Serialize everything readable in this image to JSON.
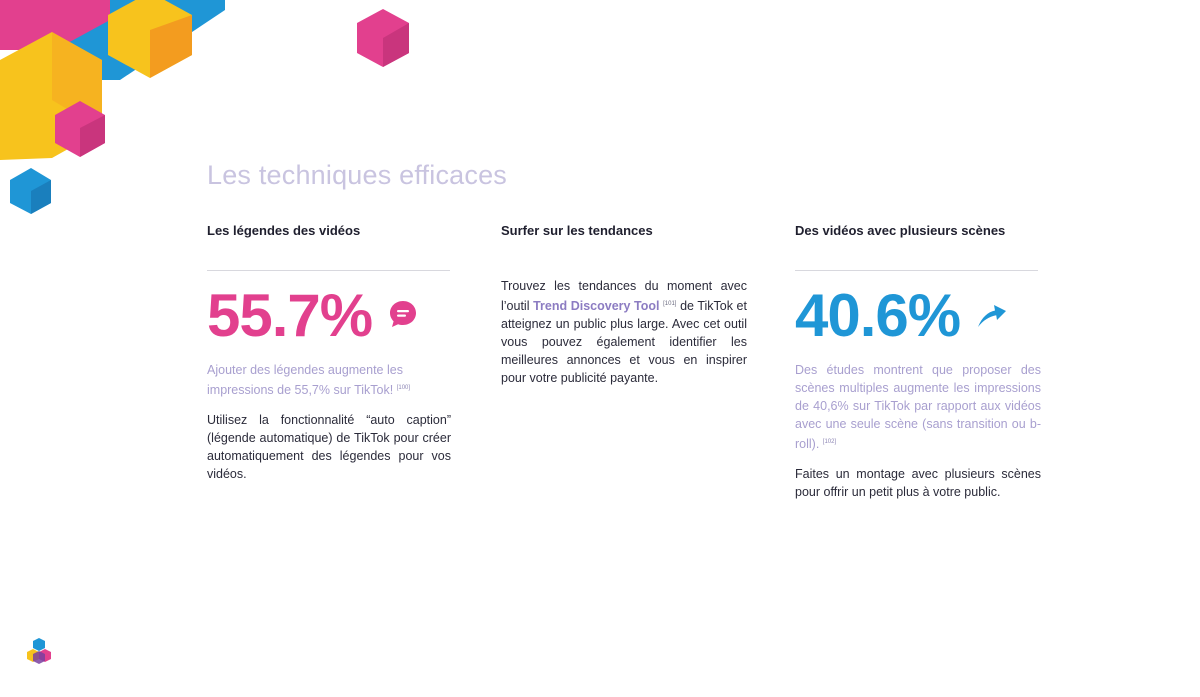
{
  "page": {
    "title": "Les techniques efficaces"
  },
  "colors": {
    "pink": "#e2408e",
    "blue": "#1f96d6",
    "yellow": "#f7c31d",
    "lavender": "#a89fcf"
  },
  "columns": [
    {
      "heading": "Les légendes des vidéos",
      "stat": "55.7%",
      "icon": "speech-bubble-icon",
      "lead": "Ajouter des légendes augmente les impressions de 55,7% sur TikTok!",
      "lead_ref": "[100]",
      "body": "Utilisez la fonctionnalité “auto caption” (légende automatique) de TikTok pour créer automatiquement des légendes pour vos vidéos."
    },
    {
      "heading": "Surfer sur les tendances",
      "body_before": "Trouvez les tendances du moment avec l’outil",
      "highlight": "Trend Discovery Tool",
      "ref": "[101]",
      "body_after": "de TikTok et atteignez un public plus large. Avec cet outil vous pouvez également identifier les meilleures annonces et vous en inspirer pour votre publicité payante."
    },
    {
      "heading": "Des vidéos avec plusieurs scènes",
      "stat": "40.6%",
      "icon": "arrow-up-right-icon",
      "lead": "Des études montrent que proposer des scènes multiples augmente les impressions de 40,6% sur TikTok par rapport aux vidéos avec une seule scène (sans transition ou b-roll).",
      "lead_ref": "[102]",
      "body": "Faites un montage avec plusieurs scènes pour offrir un petit plus à votre public."
    }
  ]
}
